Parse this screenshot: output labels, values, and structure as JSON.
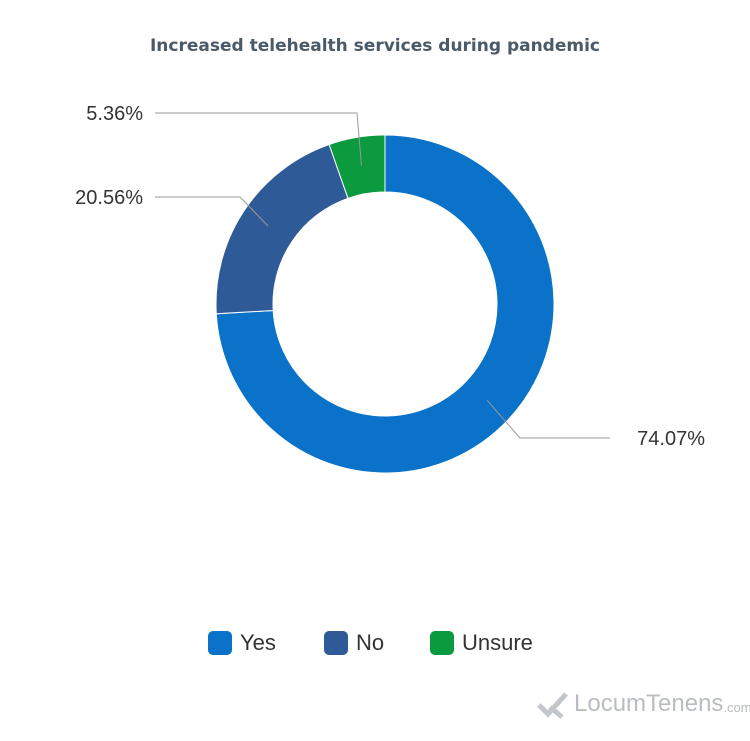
{
  "chart_data": {
    "type": "pie",
    "variant": "donut",
    "title": "Increased telehealth services during pandemic",
    "categories": [
      "Yes",
      "No",
      "Unsure"
    ],
    "values": [
      74.07,
      20.56,
      5.36
    ],
    "data_labels": [
      "74.07%",
      "20.56%",
      "5.36%"
    ],
    "colors": [
      "#0a72c8",
      "#2e5b97",
      "#0b9a3e"
    ],
    "legend_position": "bottom"
  },
  "brand": {
    "logo": "LocumTenens",
    "logo_suffix": ".com"
  }
}
